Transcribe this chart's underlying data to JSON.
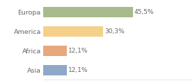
{
  "categories": [
    "Europa",
    "America",
    "Africa",
    "Asia"
  ],
  "values": [
    45.5,
    30.3,
    12.1,
    12.1
  ],
  "labels": [
    "45,5%",
    "30,3%",
    "12,1%",
    "12,1%"
  ],
  "bar_colors": [
    "#a8bb8a",
    "#f5d08a",
    "#e8a87c",
    "#8fa8c8"
  ],
  "background_color": "#ffffff",
  "text_color": "#666666",
  "figsize": [
    2.8,
    1.2
  ],
  "dpi": 100,
  "xlim": [
    0,
    75
  ],
  "bar_height": 0.55,
  "label_fontsize": 6.5,
  "ytick_fontsize": 6.8
}
